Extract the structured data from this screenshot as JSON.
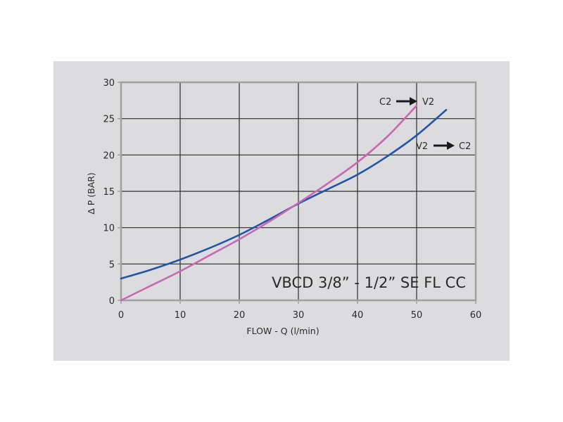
{
  "chart_data": {
    "type": "line",
    "title": "VBCD 3/8” - 1/2” SE FL CC",
    "xlabel": "FLOW -  Q (l/min)",
    "ylabel": "Δ P (BAR)",
    "xlim": [
      0,
      60
    ],
    "ylim": [
      0,
      30
    ],
    "xticks": [
      0,
      10,
      20,
      30,
      40,
      50,
      60
    ],
    "yticks": [
      0,
      5,
      10,
      15,
      20,
      25,
      30
    ],
    "grid": true,
    "series": [
      {
        "name": "V2 → C2",
        "color": "#2355a6",
        "x": [
          0,
          5,
          10,
          15,
          20,
          25,
          30,
          35,
          40,
          45,
          50,
          55
        ],
        "y": [
          3.0,
          4.2,
          5.6,
          7.2,
          9.0,
          11.1,
          13.3,
          15.3,
          17.3,
          19.8,
          22.7,
          26.2
        ]
      },
      {
        "name": "C2 → V2",
        "color": "#c868b4",
        "x": [
          0,
          5,
          10,
          15,
          20,
          25,
          30,
          35,
          40,
          45,
          50
        ],
        "y": [
          0.0,
          2.0,
          4.0,
          6.2,
          8.4,
          10.8,
          13.4,
          16.1,
          19.0,
          22.5,
          26.8
        ]
      }
    ],
    "annotations": [
      {
        "from": "C2",
        "to": "V2",
        "arrow": "→",
        "near": "end of pink curve"
      },
      {
        "from": "V2",
        "to": "C2",
        "arrow": "→",
        "near": "end of blue curve"
      }
    ]
  },
  "labels": {
    "title": "VBCD 3/8” - 1/2” SE FL CC",
    "xlabel": "FLOW -  Q (l/min)",
    "ylabel": "Δ P (BAR)",
    "annot_c2v2_from": "C2",
    "annot_c2v2_to": "V2",
    "annot_v2c2_from": "V2",
    "annot_v2c2_to": "C2"
  },
  "colors": {
    "panel_bg": "#dcdcde",
    "grid": "#2b2b2b",
    "frame": "#a0a0a0",
    "series_v2c2": "#2355a6",
    "series_c2v2": "#c868b4"
  }
}
